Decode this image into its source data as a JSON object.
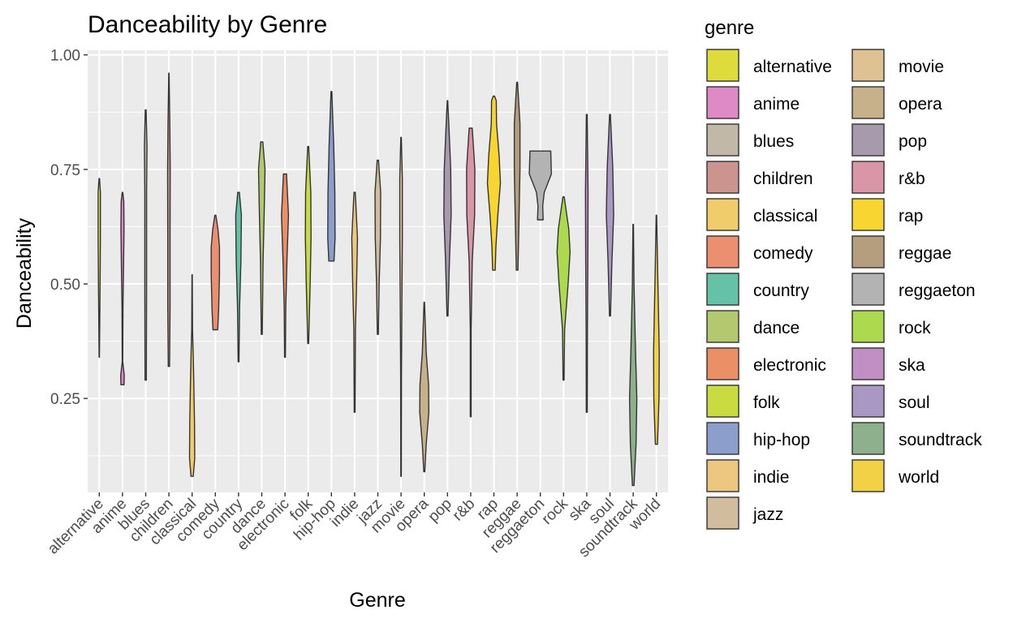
{
  "chart_data": {
    "type": "violin",
    "title": "Danceability by Genre",
    "xlabel": "Genre",
    "ylabel": "Danceability",
    "ylim": [
      0.045,
      1.01
    ],
    "y_ticks": [
      0.25,
      0.5,
      0.75,
      1.0
    ],
    "y_tick_labels": [
      "0.25",
      "0.50",
      "0.75",
      "1.00"
    ],
    "grid": true,
    "legend_title": "genre",
    "legend_position": "right",
    "categories": [
      "alternative",
      "anime",
      "blues",
      "children",
      "classical",
      "comedy",
      "country",
      "dance",
      "electronic",
      "folk",
      "hip-hop",
      "indie",
      "jazz",
      "movie",
      "opera",
      "pop",
      "r&b",
      "rap",
      "reggae",
      "reggaeton",
      "rock",
      "ska",
      "soul",
      "soundtrack",
      "world"
    ],
    "series": [
      {
        "name": "alternative",
        "color": "#DEDB3D",
        "min": 0.34,
        "max": 0.73,
        "profile": [
          [
            0.34,
            0.015
          ],
          [
            0.5,
            0.06
          ],
          [
            0.6,
            0.09
          ],
          [
            0.7,
            0.09
          ],
          [
            0.73,
            0.02
          ]
        ]
      },
      {
        "name": "anime",
        "color": "#DE8AC4",
        "min": 0.28,
        "max": 0.7,
        "profile": [
          [
            0.28,
            0.12
          ],
          [
            0.3,
            0.14
          ],
          [
            0.33,
            0.02
          ],
          [
            0.45,
            0.04
          ],
          [
            0.55,
            0.09
          ],
          [
            0.62,
            0.12
          ],
          [
            0.68,
            0.1
          ],
          [
            0.7,
            0.02
          ]
        ]
      },
      {
        "name": "blues",
        "color": "#C2B8A8",
        "min": 0.29,
        "max": 0.88,
        "profile": [
          [
            0.29,
            0.05
          ],
          [
            0.5,
            0.07
          ],
          [
            0.7,
            0.07
          ],
          [
            0.8,
            0.1
          ],
          [
            0.88,
            0.03
          ]
        ]
      },
      {
        "name": "children",
        "color": "#CC948F",
        "min": 0.32,
        "max": 0.96,
        "profile": [
          [
            0.32,
            0.05
          ],
          [
            0.45,
            0.09
          ],
          [
            0.6,
            0.09
          ],
          [
            0.75,
            0.1
          ],
          [
            0.85,
            0.07
          ],
          [
            0.96,
            0.01
          ]
        ]
      },
      {
        "name": "classical",
        "color": "#F0CC6B",
        "min": 0.08,
        "max": 0.52,
        "profile": [
          [
            0.08,
            0.09
          ],
          [
            0.12,
            0.2
          ],
          [
            0.2,
            0.18
          ],
          [
            0.28,
            0.13
          ],
          [
            0.34,
            0.09
          ],
          [
            0.4,
            0.03
          ],
          [
            0.52,
            0.01
          ]
        ]
      },
      {
        "name": "comedy",
        "color": "#EB8F70",
        "min": 0.4,
        "max": 0.65,
        "profile": [
          [
            0.4,
            0.18
          ],
          [
            0.44,
            0.25
          ],
          [
            0.52,
            0.32
          ],
          [
            0.58,
            0.32
          ],
          [
            0.62,
            0.2
          ],
          [
            0.65,
            0.04
          ]
        ]
      },
      {
        "name": "country",
        "color": "#66C2A6",
        "min": 0.33,
        "max": 0.7,
        "profile": [
          [
            0.33,
            0.03
          ],
          [
            0.45,
            0.08
          ],
          [
            0.55,
            0.18
          ],
          [
            0.65,
            0.22
          ],
          [
            0.7,
            0.06
          ]
        ]
      },
      {
        "name": "dance",
        "color": "#B2C970",
        "min": 0.39,
        "max": 0.81,
        "profile": [
          [
            0.39,
            0.04
          ],
          [
            0.55,
            0.1
          ],
          [
            0.65,
            0.18
          ],
          [
            0.75,
            0.25
          ],
          [
            0.81,
            0.08
          ]
        ]
      },
      {
        "name": "electronic",
        "color": "#EB8F66",
        "min": 0.34,
        "max": 0.74,
        "profile": [
          [
            0.34,
            0.03
          ],
          [
            0.45,
            0.06
          ],
          [
            0.55,
            0.15
          ],
          [
            0.65,
            0.27
          ],
          [
            0.74,
            0.12
          ]
        ]
      },
      {
        "name": "folk",
        "color": "#C9DB40",
        "min": 0.37,
        "max": 0.8,
        "profile": [
          [
            0.37,
            0.03
          ],
          [
            0.5,
            0.15
          ],
          [
            0.6,
            0.22
          ],
          [
            0.7,
            0.2
          ],
          [
            0.8,
            0.04
          ]
        ]
      },
      {
        "name": "hip-hop",
        "color": "#8C9ECC",
        "min": 0.55,
        "max": 0.92,
        "profile": [
          [
            0.55,
            0.2
          ],
          [
            0.6,
            0.28
          ],
          [
            0.7,
            0.26
          ],
          [
            0.8,
            0.18
          ],
          [
            0.92,
            0.03
          ]
        ]
      },
      {
        "name": "indie",
        "color": "#EDC77F",
        "min": 0.22,
        "max": 0.7,
        "profile": [
          [
            0.22,
            0.03
          ],
          [
            0.4,
            0.06
          ],
          [
            0.5,
            0.15
          ],
          [
            0.6,
            0.22
          ],
          [
            0.7,
            0.05
          ]
        ]
      },
      {
        "name": "jazz",
        "color": "#D1BD9E",
        "min": 0.39,
        "max": 0.77,
        "profile": [
          [
            0.39,
            0.04
          ],
          [
            0.5,
            0.1
          ],
          [
            0.6,
            0.2
          ],
          [
            0.7,
            0.22
          ],
          [
            0.77,
            0.05
          ]
        ]
      },
      {
        "name": "movie",
        "color": "#DEC294",
        "min": 0.08,
        "max": 0.82,
        "profile": [
          [
            0.08,
            0.02
          ],
          [
            0.3,
            0.03
          ],
          [
            0.45,
            0.06
          ],
          [
            0.6,
            0.1
          ],
          [
            0.73,
            0.1
          ],
          [
            0.82,
            0.02
          ]
        ]
      },
      {
        "name": "opera",
        "color": "#C7B18A",
        "min": 0.09,
        "max": 0.46,
        "profile": [
          [
            0.09,
            0.04
          ],
          [
            0.15,
            0.15
          ],
          [
            0.22,
            0.35
          ],
          [
            0.28,
            0.33
          ],
          [
            0.35,
            0.15
          ],
          [
            0.46,
            0.02
          ]
        ]
      },
      {
        "name": "pop",
        "color": "#A89AAD",
        "min": 0.43,
        "max": 0.9,
        "profile": [
          [
            0.43,
            0.04
          ],
          [
            0.55,
            0.15
          ],
          [
            0.65,
            0.28
          ],
          [
            0.75,
            0.25
          ],
          [
            0.85,
            0.1
          ],
          [
            0.9,
            0.02
          ]
        ]
      },
      {
        "name": "r&b",
        "color": "#D996A6",
        "min": 0.21,
        "max": 0.84,
        "profile": [
          [
            0.21,
            0.03
          ],
          [
            0.4,
            0.03
          ],
          [
            0.55,
            0.12
          ],
          [
            0.65,
            0.3
          ],
          [
            0.75,
            0.32
          ],
          [
            0.84,
            0.12
          ]
        ]
      },
      {
        "name": "rap",
        "color": "#F9D531",
        "min": 0.53,
        "max": 0.91,
        "profile": [
          [
            0.53,
            0.1
          ],
          [
            0.58,
            0.15
          ],
          [
            0.65,
            0.3
          ],
          [
            0.72,
            0.5
          ],
          [
            0.78,
            0.4
          ],
          [
            0.85,
            0.2
          ],
          [
            0.9,
            0.18
          ],
          [
            0.91,
            0.05
          ]
        ]
      },
      {
        "name": "reggae",
        "color": "#B59E7D",
        "min": 0.53,
        "max": 0.94,
        "profile": [
          [
            0.53,
            0.06
          ],
          [
            0.65,
            0.15
          ],
          [
            0.75,
            0.22
          ],
          [
            0.85,
            0.22
          ],
          [
            0.94,
            0.03
          ]
        ]
      },
      {
        "name": "reggaeton",
        "color": "#B3B3B3",
        "min": 0.64,
        "max": 0.79,
        "profile": [
          [
            0.64,
            0.22
          ],
          [
            0.67,
            0.18
          ],
          [
            0.7,
            0.3
          ],
          [
            0.74,
            0.85
          ],
          [
            0.79,
            0.8
          ]
        ]
      },
      {
        "name": "rock",
        "color": "#ADD94F",
        "min": 0.29,
        "max": 0.69,
        "profile": [
          [
            0.29,
            0.04
          ],
          [
            0.4,
            0.08
          ],
          [
            0.5,
            0.35
          ],
          [
            0.57,
            0.5
          ],
          [
            0.62,
            0.4
          ],
          [
            0.69,
            0.05
          ]
        ]
      },
      {
        "name": "ska",
        "color": "#C28FC4",
        "min": 0.22,
        "max": 0.87,
        "profile": [
          [
            0.22,
            0.04
          ],
          [
            0.4,
            0.05
          ],
          [
            0.55,
            0.08
          ],
          [
            0.7,
            0.1
          ],
          [
            0.87,
            0.03
          ]
        ]
      },
      {
        "name": "soul",
        "color": "#A997C4",
        "min": 0.43,
        "max": 0.87,
        "profile": [
          [
            0.43,
            0.04
          ],
          [
            0.55,
            0.15
          ],
          [
            0.65,
            0.28
          ],
          [
            0.75,
            0.22
          ],
          [
            0.87,
            0.03
          ]
        ]
      },
      {
        "name": "soundtrack",
        "color": "#8FB08C",
        "min": 0.06,
        "max": 0.63,
        "profile": [
          [
            0.06,
            0.06
          ],
          [
            0.15,
            0.22
          ],
          [
            0.25,
            0.28
          ],
          [
            0.35,
            0.18
          ],
          [
            0.5,
            0.06
          ],
          [
            0.63,
            0.02
          ]
        ]
      },
      {
        "name": "world",
        "color": "#F2D147",
        "min": 0.15,
        "max": 0.65,
        "profile": [
          [
            0.15,
            0.08
          ],
          [
            0.25,
            0.2
          ],
          [
            0.35,
            0.22
          ],
          [
            0.45,
            0.15
          ],
          [
            0.55,
            0.08
          ],
          [
            0.65,
            0.02
          ]
        ]
      }
    ]
  }
}
